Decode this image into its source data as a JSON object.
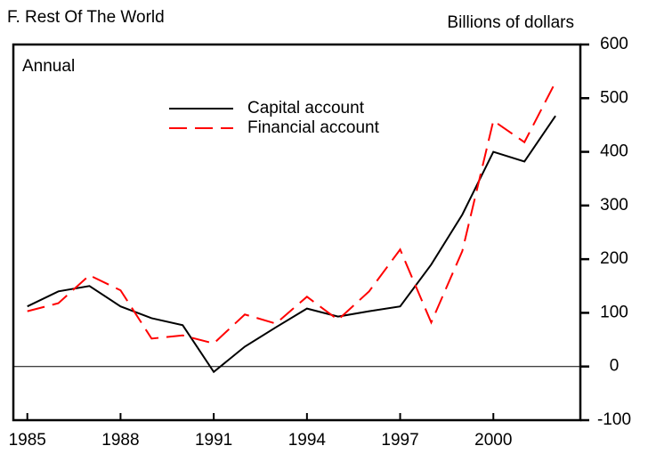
{
  "chart_data": {
    "type": "line",
    "title": "F. Rest Of The World",
    "y_label": "Billions of dollars",
    "annotation": "Annual",
    "x": [
      1985,
      1986,
      1987,
      1988,
      1989,
      1990,
      1991,
      1992,
      1993,
      1994,
      1995,
      1996,
      1997,
      1998,
      1999,
      2000,
      2001,
      2002
    ],
    "series": [
      {
        "name": "Capital account",
        "color": "#000000",
        "dash": false,
        "values": [
          112,
          140,
          150,
          112,
          90,
          77,
          -10,
          37,
          73,
          108,
          93,
          103,
          112,
          190,
          283,
          400,
          382,
          467
        ]
      },
      {
        "name": "Financial account",
        "color": "#ff0000",
        "dash": true,
        "values": [
          103,
          118,
          170,
          142,
          52,
          58,
          43,
          97,
          80,
          130,
          87,
          140,
          218,
          82,
          215,
          458,
          418,
          530
        ]
      }
    ],
    "xlim": [
      1984.55,
      2002.8
    ],
    "xticks": [
      1985,
      1988,
      1991,
      1994,
      1997,
      2000
    ],
    "ylim": [
      -100,
      600
    ],
    "yticks": [
      -100,
      0,
      100,
      200,
      300,
      400,
      500,
      600
    ]
  }
}
